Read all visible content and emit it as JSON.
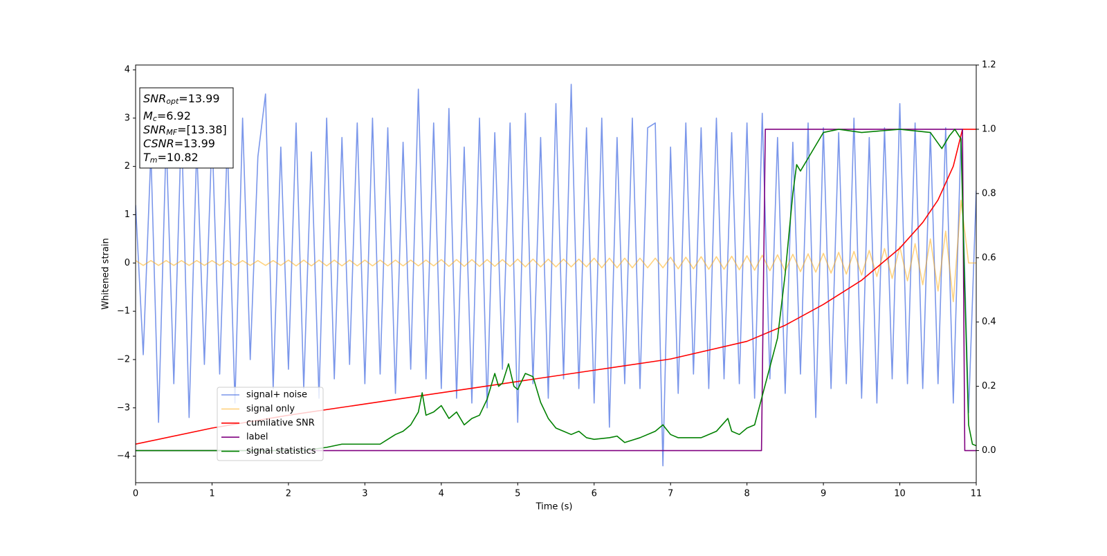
{
  "chart_data": {
    "type": "line",
    "xlabel": "Time (s)",
    "ylabel": "Whitened strain",
    "xlim": [
      0,
      11
    ],
    "xticks": [
      0,
      1,
      2,
      3,
      4,
      5,
      6,
      7,
      8,
      9,
      10,
      11
    ],
    "ylim": [
      -4.55,
      4.1
    ],
    "yticks": [
      {
        "value": -4,
        "label": "−4"
      },
      {
        "value": -3,
        "label": "−3"
      },
      {
        "value": -2,
        "label": "−2"
      },
      {
        "value": -1,
        "label": "−1"
      },
      0,
      1,
      2,
      3,
      4
    ],
    "y2lim": [
      -0.1,
      1.2
    ],
    "y2ticks": [
      {
        "value": 0,
        "label": "0.0"
      },
      {
        "value": 0.2,
        "label": "0.2"
      },
      {
        "value": 0.4,
        "label": "0.4"
      },
      {
        "value": 0.6,
        "label": "0.6"
      },
      {
        "value": 0.8,
        "label": "0.8"
      },
      {
        "value": 1,
        "label": "1.0"
      },
      {
        "value": 1.2,
        "label": "1.2"
      }
    ],
    "legend": "lower left",
    "annotations": [
      {
        "symbol": "SNR",
        "sub": "opt",
        "text": "=13.99"
      },
      {
        "symbol": "M",
        "sub": "c",
        "text": "=6.92"
      },
      {
        "symbol": "SNR",
        "sub": "MF",
        "text": "=[13.38]"
      },
      {
        "symbol": "CSNR",
        "text": "=13.99"
      },
      {
        "symbol": "T",
        "sub": "m",
        "text": "=10.82"
      }
    ],
    "series": [
      {
        "name": "signal+ noise",
        "color": "#4169e1",
        "alpha": 0.7,
        "x": [
          0,
          0.1,
          0.2,
          0.3,
          0.4,
          0.5,
          0.6,
          0.7,
          0.8,
          0.9,
          1,
          1.1,
          1.2,
          1.3,
          1.4,
          1.5,
          1.6,
          1.7,
          1.8,
          1.9,
          2,
          2.1,
          2.2,
          2.3,
          2.4,
          2.5,
          2.6,
          2.7,
          2.8,
          2.9,
          3,
          3.1,
          3.2,
          3.3,
          3.4,
          3.5,
          3.6,
          3.7,
          3.8,
          3.9,
          4,
          4.1,
          4.2,
          4.3,
          4.4,
          4.5,
          4.6,
          4.7,
          4.8,
          4.9,
          5,
          5.1,
          5.2,
          5.3,
          5.4,
          5.5,
          5.6,
          5.7,
          5.8,
          5.9,
          6,
          6.1,
          6.2,
          6.3,
          6.4,
          6.5,
          6.6,
          6.7,
          6.8,
          6.9,
          7,
          7.1,
          7.2,
          7.3,
          7.4,
          7.5,
          7.6,
          7.7,
          7.8,
          7.9,
          8,
          8.1,
          8.2,
          8.3,
          8.4,
          8.5,
          8.6,
          8.7,
          8.8,
          8.9,
          9,
          9.1,
          9.2,
          9.3,
          9.4,
          9.5,
          9.6,
          9.7,
          9.8,
          9.9,
          10,
          10.1,
          10.2,
          10.3,
          10.4,
          10.5,
          10.6,
          10.7,
          10.8,
          10.9,
          11
        ],
        "values": [
          1.2,
          -1.9,
          2.3,
          -3.3,
          2.6,
          -2.5,
          2.9,
          -3.2,
          2.4,
          -2.1,
          2.7,
          -2.3,
          2.5,
          -2.9,
          3.0,
          -2.0,
          2.2,
          3.5,
          -2.6,
          2.4,
          -2.2,
          2.9,
          -2.6,
          2.3,
          -2.8,
          3.0,
          -2.4,
          2.6,
          -2.1,
          2.9,
          -2.5,
          3.0,
          -2.3,
          2.8,
          -2.7,
          2.5,
          -2.2,
          3.6,
          -2.4,
          2.9,
          -2.6,
          3.2,
          -2.8,
          2.4,
          -2.9,
          3.0,
          -3.0,
          2.7,
          -2.2,
          2.9,
          -3.3,
          3.1,
          -2.5,
          2.6,
          -2.8,
          3.3,
          -2.4,
          3.7,
          -2.6,
          2.8,
          -2.9,
          3.0,
          -3.4,
          2.6,
          -2.5,
          3.0,
          -2.6,
          2.8,
          2.9,
          -4.2,
          2.4,
          -2.7,
          2.9,
          -2.3,
          2.8,
          -2.6,
          3.0,
          -2.4,
          2.7,
          -2.5,
          2.9,
          -2.8,
          3.1,
          -2.4,
          2.6,
          -2.7,
          2.5,
          -2.3,
          2.9,
          -3.2,
          2.8,
          -2.6,
          2.7,
          -2.5,
          3.0,
          -2.8,
          2.6,
          -2.9,
          2.8,
          -2.4,
          3.3,
          -2.5,
          2.9,
          -2.6,
          2.7,
          -2.5,
          2.8,
          -2.9,
          2.6,
          -3.1,
          1.5
        ]
      },
      {
        "name": "signal only",
        "color": "#ffa500",
        "alpha": 0.5,
        "x": [
          0,
          0.1,
          0.2,
          0.3,
          0.4,
          0.5,
          0.6,
          0.7,
          0.8,
          0.9,
          1,
          1.1,
          1.2,
          1.3,
          1.4,
          1.5,
          1.6,
          1.7,
          1.8,
          1.9,
          2,
          2.1,
          2.2,
          2.3,
          2.4,
          2.5,
          2.6,
          2.7,
          2.8,
          2.9,
          3,
          3.1,
          3.2,
          3.3,
          3.4,
          3.5,
          3.6,
          3.7,
          3.8,
          3.9,
          4,
          4.1,
          4.2,
          4.3,
          4.4,
          4.5,
          4.6,
          4.7,
          4.8,
          4.9,
          5,
          5.1,
          5.2,
          5.3,
          5.4,
          5.5,
          5.6,
          5.7,
          5.8,
          5.9,
          6,
          6.1,
          6.2,
          6.3,
          6.4,
          6.5,
          6.6,
          6.7,
          6.8,
          6.9,
          7,
          7.1,
          7.2,
          7.3,
          7.4,
          7.5,
          7.6,
          7.7,
          7.8,
          7.9,
          8,
          8.1,
          8.2,
          8.3,
          8.4,
          8.5,
          8.6,
          8.7,
          8.8,
          8.9,
          9,
          9.1,
          9.2,
          9.3,
          9.4,
          9.5,
          9.6,
          9.7,
          9.8,
          9.9,
          10,
          10.1,
          10.2,
          10.3,
          10.4,
          10.5,
          10.6,
          10.7,
          10.8,
          10.9,
          11
        ],
        "values": [
          0.05,
          -0.05,
          0.05,
          -0.05,
          0.05,
          -0.05,
          0.05,
          -0.05,
          0.05,
          -0.05,
          0.05,
          -0.05,
          0.05,
          -0.05,
          0.05,
          -0.05,
          0.05,
          -0.05,
          0.05,
          -0.05,
          0.06,
          -0.06,
          0.06,
          -0.06,
          0.06,
          -0.06,
          0.06,
          -0.06,
          0.06,
          -0.06,
          0.06,
          -0.06,
          0.06,
          -0.06,
          0.06,
          -0.06,
          0.06,
          -0.06,
          0.06,
          -0.06,
          0.07,
          -0.07,
          0.07,
          -0.07,
          0.07,
          -0.07,
          0.07,
          -0.07,
          0.07,
          -0.07,
          0.08,
          -0.08,
          0.08,
          -0.08,
          0.08,
          -0.08,
          0.08,
          -0.08,
          0.08,
          -0.08,
          0.1,
          -0.1,
          0.1,
          -0.1,
          0.1,
          -0.1,
          0.1,
          -0.1,
          0.1,
          -0.1,
          0.12,
          -0.12,
          0.12,
          -0.12,
          0.13,
          -0.13,
          0.13,
          -0.13,
          0.14,
          -0.14,
          0.15,
          -0.15,
          0.16,
          -0.16,
          0.17,
          -0.17,
          0.18,
          -0.18,
          0.19,
          -0.19,
          0.2,
          -0.21,
          0.22,
          -0.23,
          0.24,
          -0.25,
          0.26,
          -0.28,
          0.3,
          -0.32,
          0.34,
          -0.37,
          0.4,
          -0.45,
          0.5,
          -0.58,
          0.66,
          -0.8,
          1.3,
          0,
          0
        ]
      },
      {
        "name": "cumilative SNR",
        "color": "#ff0000",
        "axis": "y2",
        "x": [
          0,
          1,
          2,
          3,
          4,
          5,
          6,
          7,
          8,
          8.5,
          9,
          9.5,
          10,
          10.3,
          10.5,
          10.7,
          10.82,
          11
        ],
        "values": [
          0.02,
          0.07,
          0.11,
          0.145,
          0.18,
          0.215,
          0.25,
          0.285,
          0.34,
          0.39,
          0.455,
          0.53,
          0.63,
          0.71,
          0.78,
          0.885,
          1.0,
          1.0
        ]
      },
      {
        "name": "label",
        "color": "#800080",
        "axis": "y2",
        "x": [
          0,
          8.19,
          8.24,
          10.82,
          10.85,
          11
        ],
        "values": [
          0,
          0,
          1,
          1,
          0,
          0
        ]
      },
      {
        "name": "signal statistics",
        "color": "#008000",
        "axis": "y2",
        "x": [
          0,
          2.2,
          2.5,
          2.7,
          3.0,
          3.2,
          3.4,
          3.5,
          3.6,
          3.7,
          3.75,
          3.8,
          3.9,
          4.0,
          4.1,
          4.2,
          4.3,
          4.4,
          4.5,
          4.6,
          4.7,
          4.75,
          4.8,
          4.88,
          4.95,
          5.0,
          5.1,
          5.2,
          5.3,
          5.4,
          5.5,
          5.6,
          5.7,
          5.8,
          5.9,
          6.0,
          6.2,
          6.3,
          6.4,
          6.6,
          6.8,
          6.9,
          7.0,
          7.1,
          7.4,
          7.6,
          7.75,
          7.8,
          7.9,
          8.0,
          8.1,
          8.2,
          8.3,
          8.4,
          8.5,
          8.6,
          8.65,
          8.7,
          8.8,
          8.9,
          9.0,
          9.2,
          9.5,
          10.0,
          10.4,
          10.55,
          10.65,
          10.72,
          10.8,
          10.85,
          10.9,
          10.95,
          11.0
        ],
        "values": [
          0,
          0,
          0.01,
          0.02,
          0.02,
          0.02,
          0.05,
          0.06,
          0.08,
          0.12,
          0.18,
          0.11,
          0.12,
          0.14,
          0.1,
          0.12,
          0.08,
          0.1,
          0.11,
          0.16,
          0.24,
          0.2,
          0.21,
          0.27,
          0.2,
          0.19,
          0.24,
          0.23,
          0.15,
          0.1,
          0.07,
          0.06,
          0.05,
          0.06,
          0.04,
          0.035,
          0.04,
          0.045,
          0.025,
          0.04,
          0.06,
          0.08,
          0.05,
          0.04,
          0.04,
          0.06,
          0.1,
          0.06,
          0.05,
          0.07,
          0.08,
          0.17,
          0.26,
          0.35,
          0.55,
          0.8,
          0.89,
          0.87,
          0.91,
          0.95,
          0.99,
          1.0,
          0.99,
          1.0,
          0.99,
          0.94,
          0.98,
          1.0,
          0.97,
          0.5,
          0.08,
          0.02,
          0.015
        ]
      }
    ]
  }
}
